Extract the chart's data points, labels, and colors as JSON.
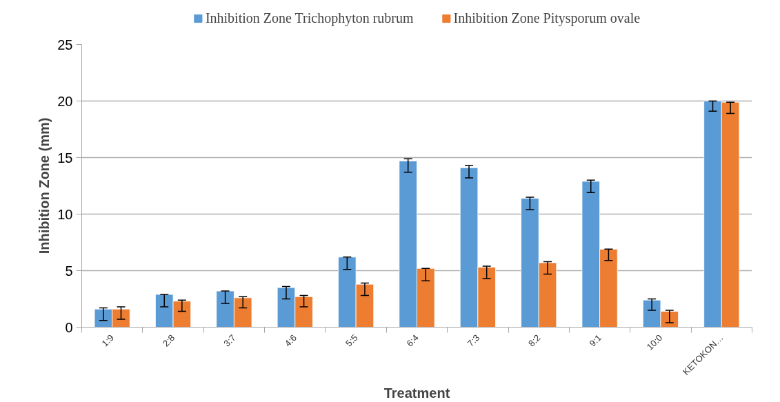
{
  "chart_data": {
    "type": "bar",
    "xlabel": "Treatment",
    "ylabel": "Inhibition Zone (mm)",
    "categories": [
      "1:9",
      "2:8",
      "3:7",
      "4:6",
      "5:5",
      "6:4",
      "7:3",
      "8:2",
      "9:1",
      "10:0",
      "KETOKON…"
    ],
    "series": [
      {
        "name": "Inhibition Zone Trichophyton rubrum",
        "color": "#5b9bd5",
        "values": [
          1.6,
          2.9,
          3.2,
          3.5,
          6.2,
          14.7,
          14.1,
          11.4,
          12.9,
          2.4,
          20.0
        ],
        "errors": [
          [
            0.6,
            1.7
          ],
          [
            1.8,
            2.9
          ],
          [
            2.1,
            3.2
          ],
          [
            2.5,
            3.6
          ],
          [
            5.1,
            6.2
          ],
          [
            13.7,
            14.9
          ],
          [
            13.2,
            14.3
          ],
          [
            10.4,
            11.5
          ],
          [
            11.9,
            13.0
          ],
          [
            1.5,
            2.5
          ],
          [
            19.1,
            20.0
          ]
        ]
      },
      {
        "name": "Inhibition Zone Pitysporum ovale",
        "color": "#ed7d31",
        "values": [
          1.6,
          2.3,
          2.6,
          2.7,
          3.8,
          5.2,
          5.3,
          5.7,
          6.9,
          1.4,
          19.9
        ],
        "errors": [
          [
            0.7,
            1.8
          ],
          [
            1.4,
            2.4
          ],
          [
            1.7,
            2.7
          ],
          [
            1.8,
            2.8
          ],
          [
            2.8,
            3.9
          ],
          [
            4.1,
            5.2
          ],
          [
            4.3,
            5.4
          ],
          [
            4.7,
            5.8
          ],
          [
            5.9,
            6.9
          ],
          [
            0.4,
            1.5
          ],
          [
            18.9,
            19.9
          ]
        ]
      }
    ],
    "ylim": [
      0,
      25
    ],
    "yticks": [
      0,
      5,
      10,
      15,
      20,
      25
    ],
    "grid": "y",
    "legend": "top"
  }
}
